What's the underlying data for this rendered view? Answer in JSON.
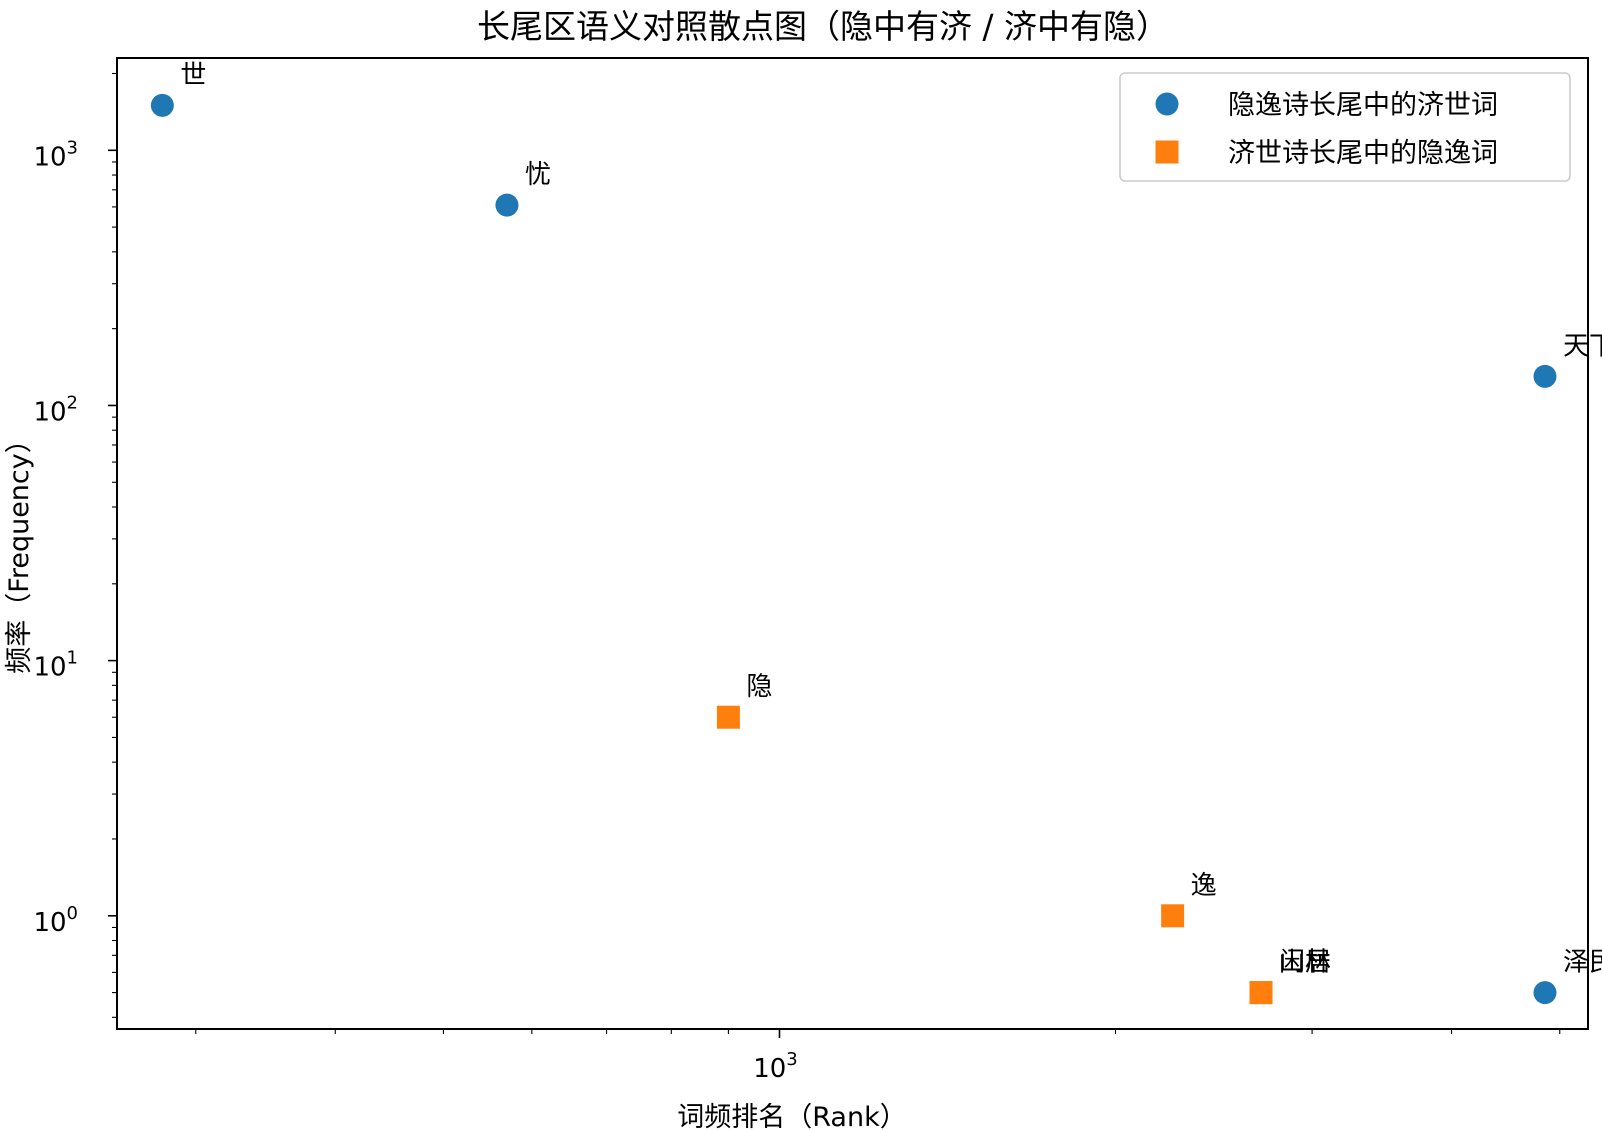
{
  "chart_data": {
    "type": "scatter",
    "title": "长尾区语义对照散点图（隐中有济 / 济中有隐）",
    "xlabel": "词频排名（Rank）",
    "ylabel": "频率（Frequency）",
    "xscale": "log",
    "yscale": "log",
    "xlim": [
      255,
      5300
    ],
    "ylim": [
      0.36,
      2300
    ],
    "x_ticks": [
      {
        "base": "10",
        "exp": "3"
      }
    ],
    "y_ticks": [
      {
        "base": "10",
        "exp": "0"
      },
      {
        "base": "10",
        "exp": "1"
      },
      {
        "base": "10",
        "exp": "2"
      },
      {
        "base": "10",
        "exp": "3"
      }
    ],
    "legend_position": "top-right",
    "series": [
      {
        "name": "隐逸诗长尾中的济世词",
        "marker": "circle",
        "color": "#1f77b4",
        "points": [
          {
            "label": "世",
            "x": 280,
            "y": 1500
          },
          {
            "label": "忧",
            "x": 570,
            "y": 610
          },
          {
            "label": "天下",
            "x": 4850,
            "y": 130
          },
          {
            "label": "泽民",
            "x": 4850,
            "y": 0.5
          }
        ]
      },
      {
        "name": "济世诗长尾中的隐逸词",
        "marker": "square",
        "color": "#ff7f0e",
        "points": [
          {
            "label": "隐",
            "x": 900,
            "y": 6
          },
          {
            "label": "逸",
            "x": 2250,
            "y": 1
          },
          {
            "label": "山林",
            "x": 2700,
            "y": 0.5
          },
          {
            "label": "闲居",
            "x": 2700,
            "y": 0.5
          }
        ]
      }
    ]
  }
}
